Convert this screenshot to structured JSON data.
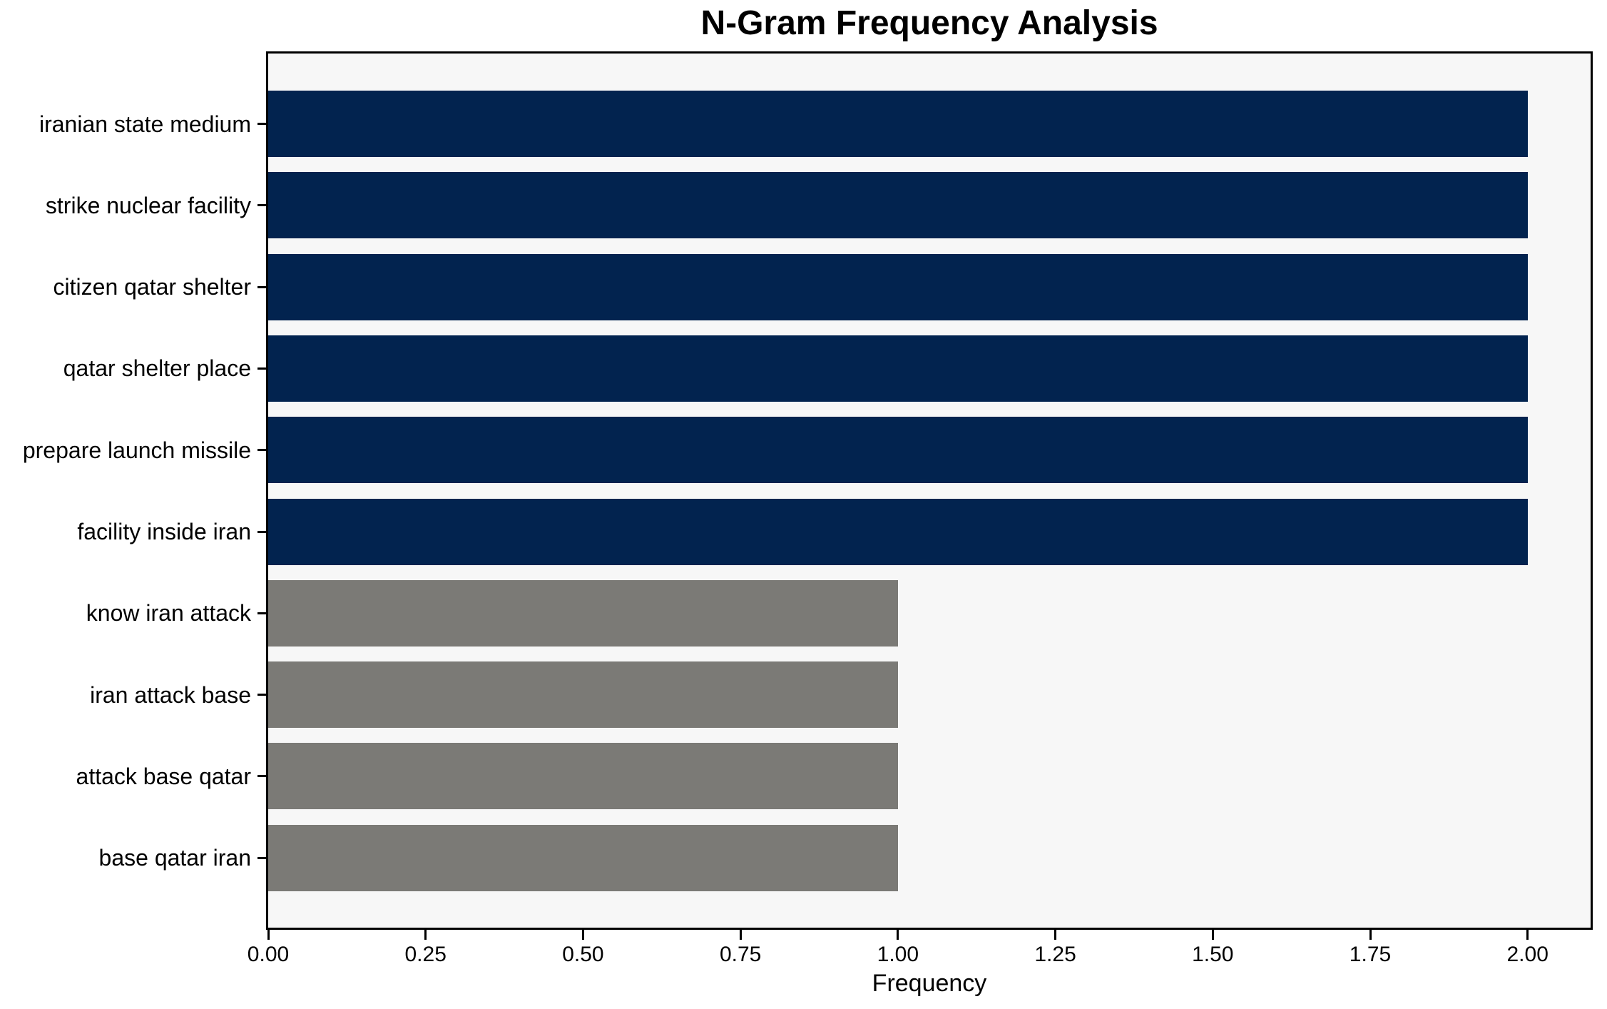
{
  "chart_data": {
    "type": "bar",
    "orientation": "horizontal",
    "title": "N-Gram Frequency Analysis",
    "xlabel": "Frequency",
    "ylabel": "",
    "categories": [
      "iranian state medium",
      "strike nuclear facility",
      "citizen qatar shelter",
      "qatar shelter place",
      "prepare launch missile",
      "facility inside iran",
      "know iran attack",
      "iran attack base",
      "attack base qatar",
      "base qatar iran"
    ],
    "values": [
      2,
      2,
      2,
      2,
      2,
      2,
      1,
      1,
      1,
      1
    ],
    "bar_colors": [
      "#02234f",
      "#02234f",
      "#02234f",
      "#02234f",
      "#02234f",
      "#02234f",
      "#7b7a76",
      "#7b7a76",
      "#7b7a76",
      "#7b7a76"
    ],
    "x_ticks": [
      {
        "value": 0.0,
        "label": "0.00"
      },
      {
        "value": 0.25,
        "label": "0.25"
      },
      {
        "value": 0.5,
        "label": "0.50"
      },
      {
        "value": 0.75,
        "label": "0.75"
      },
      {
        "value": 1.0,
        "label": "1.00"
      },
      {
        "value": 1.25,
        "label": "1.25"
      },
      {
        "value": 1.5,
        "label": "1.50"
      },
      {
        "value": 1.75,
        "label": "1.75"
      },
      {
        "value": 2.0,
        "label": "2.00"
      }
    ],
    "xlim": [
      0,
      2.1
    ],
    "grid": false,
    "legend": false,
    "colors": {
      "navy": "#02234f",
      "gray": "#7b7a76",
      "plot_background": "#f7f7f7",
      "figure_background": "#ffffff",
      "axis": "#000000",
      "text": "#000000"
    }
  }
}
